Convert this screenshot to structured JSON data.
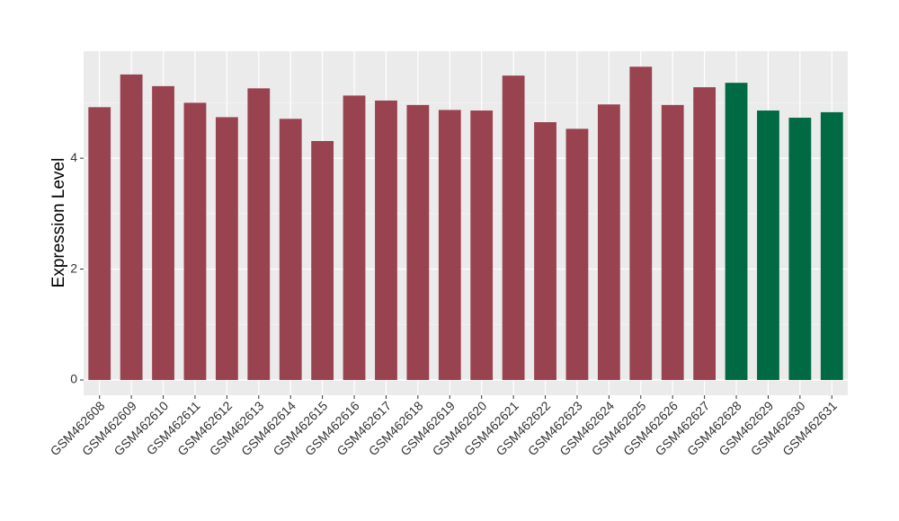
{
  "chart_data": {
    "type": "bar",
    "y_label": "Expression Level",
    "categories": [
      "GSM462608",
      "GSM462609",
      "GSM462610",
      "GSM462611",
      "GSM462612",
      "GSM462613",
      "GSM462614",
      "GSM462615",
      "GSM462616",
      "GSM462617",
      "GSM462618",
      "GSM462619",
      "GSM462620",
      "GSM462621",
      "GSM462622",
      "GSM462623",
      "GSM462624",
      "GSM462625",
      "GSM462626",
      "GSM462627",
      "GSM462628",
      "GSM462629",
      "GSM462630",
      "GSM462631"
    ],
    "values": [
      4.92,
      5.51,
      5.3,
      5.0,
      4.74,
      5.26,
      4.71,
      4.31,
      5.13,
      5.04,
      4.96,
      4.87,
      4.86,
      5.49,
      4.65,
      4.53,
      4.97,
      5.65,
      4.96,
      5.28,
      5.36,
      4.86,
      4.73,
      4.83
    ],
    "colors": [
      "#994250",
      "#994250",
      "#994250",
      "#994250",
      "#994250",
      "#994250",
      "#994250",
      "#994250",
      "#994250",
      "#994250",
      "#994250",
      "#994250",
      "#994250",
      "#994250",
      "#994250",
      "#994250",
      "#994250",
      "#994250",
      "#994250",
      "#994250",
      "#006a45",
      "#006a45",
      "#006a45",
      "#006a45"
    ],
    "ylim": [
      -0.275,
      5.93
    ],
    "yticks": [
      0,
      2,
      4
    ],
    "minor_yticks": [
      1,
      3,
      5
    ],
    "grid": true
  }
}
